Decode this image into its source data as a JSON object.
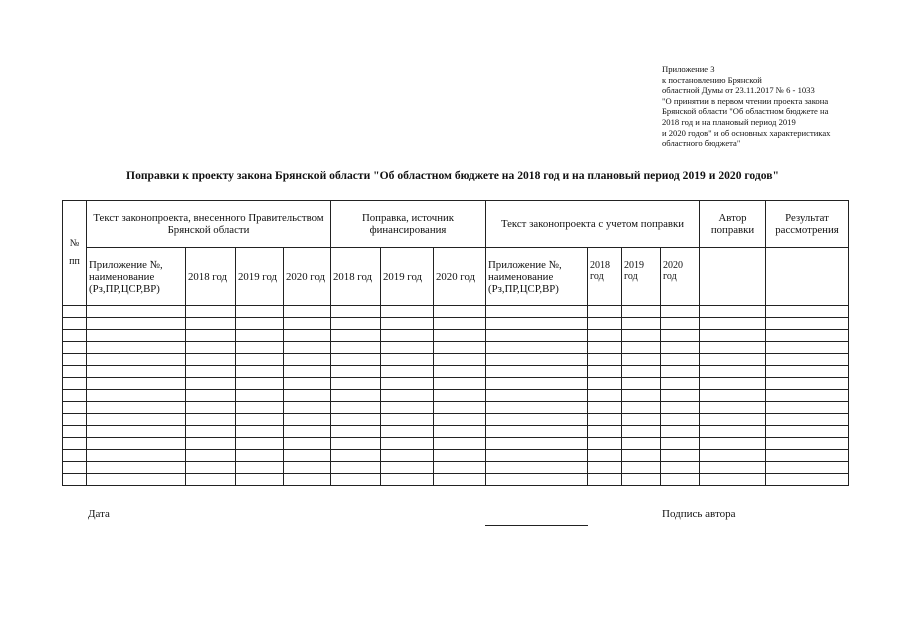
{
  "note": {
    "lines": [
      "Приложение 3",
      "к  постановлению Брянской",
      "областной  Думы   от  23.11.2017    №  6 - 1033",
      "\"О  принятии в первом чтении проекта закона",
      "Брянской области \"Об областном бюджете на",
      "2018 год и на плановый период 2019",
      "и 2020 годов\"  и об основных характеристиках",
      "областного бюджета\""
    ]
  },
  "title": "Поправки к проекту закона Брянской области \"Об областном бюджете на 2018 год и на плановый период 2019 и 2020 годов\"",
  "table": {
    "num_header_1": "№",
    "num_header_2": "пп",
    "group1": "Текст законопроекта, внесенного Правительством Брянской области",
    "group2": "Поправка, источник финансирования",
    "group3": "Текст законопроекта с учетом поправки",
    "author": "Автор поправки",
    "result": "Результат рассмотрения",
    "appendix": "Приложение №, наименование (Рз,ПР,ЦСР,ВР)",
    "y2018": "2018 год",
    "y2019": "2019 год",
    "y2020": "2020 год",
    "empty_rows": 15
  },
  "footer": {
    "date": "Дата",
    "signature": "Подпись автора"
  }
}
